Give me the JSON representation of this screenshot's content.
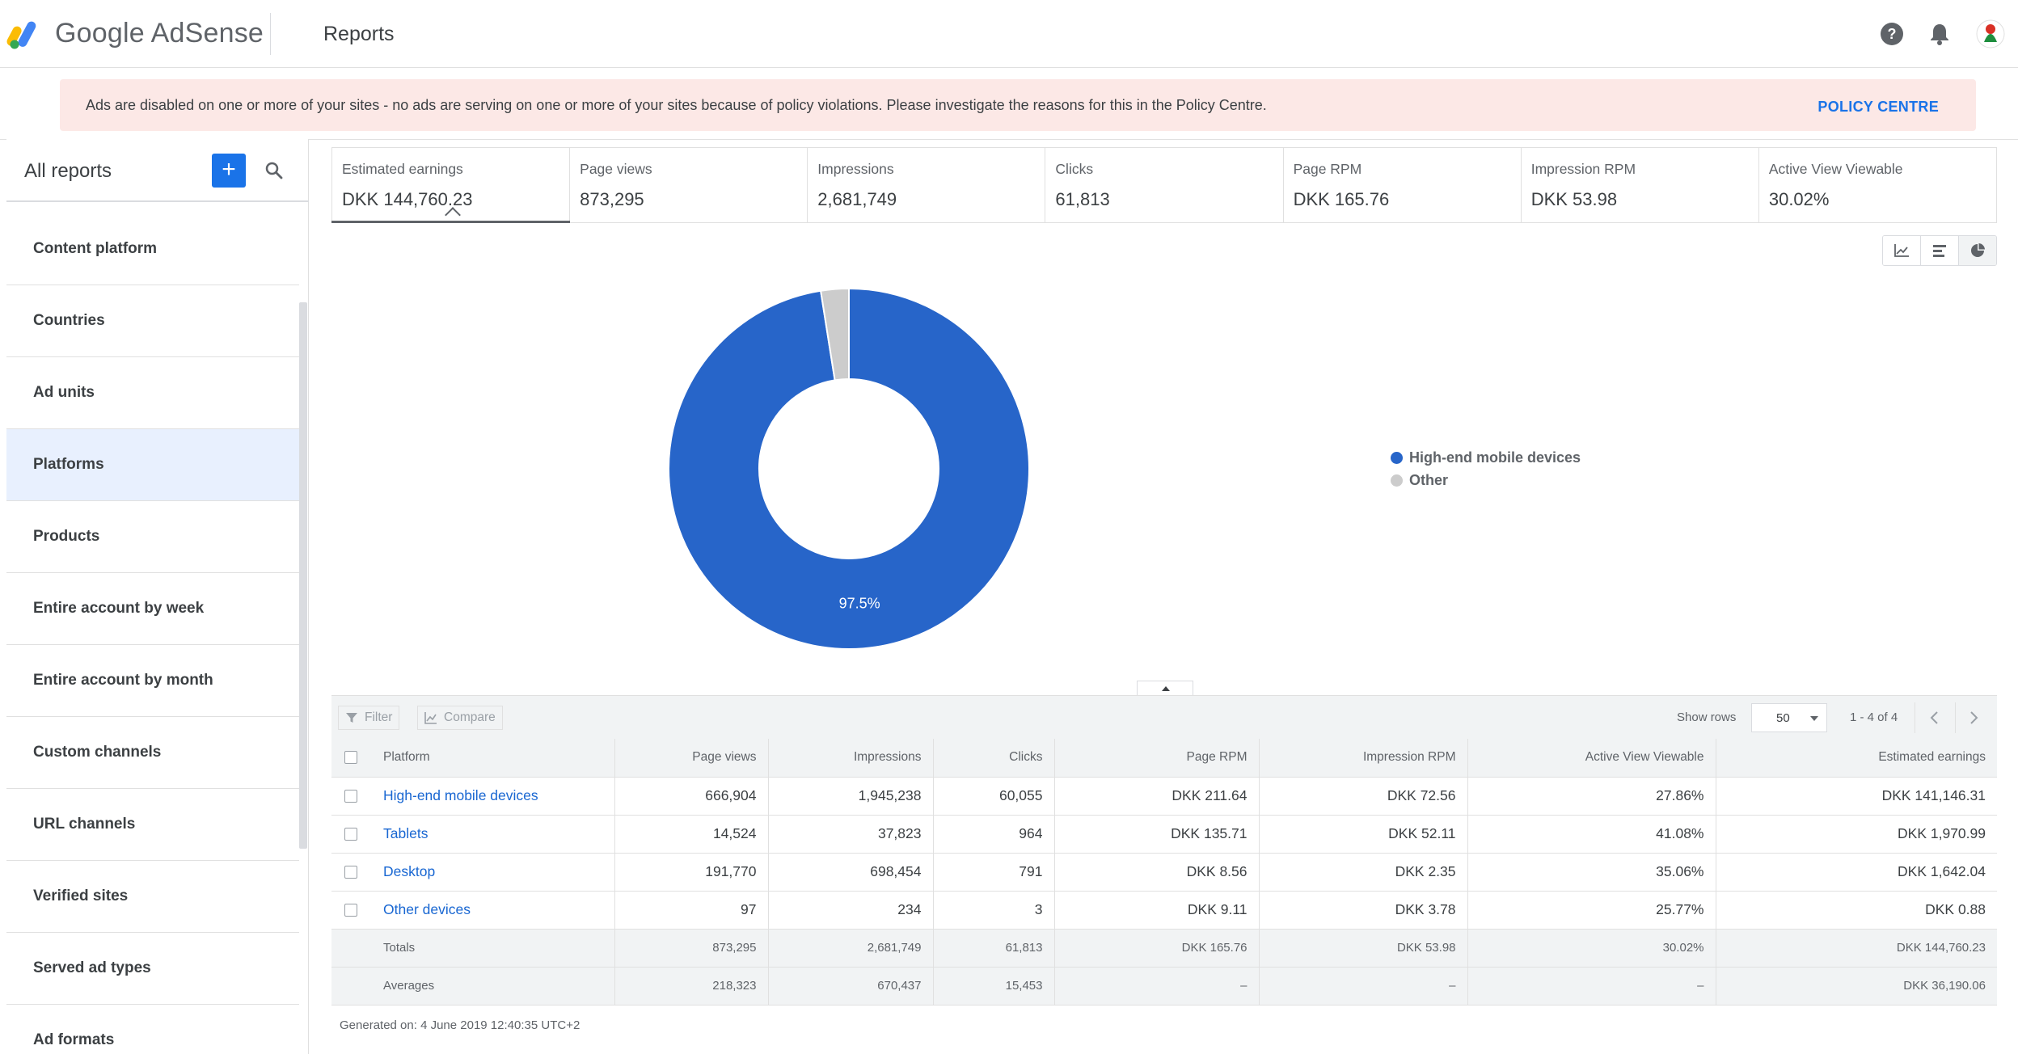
{
  "header": {
    "logo_text": "Google AdSense",
    "title": "Reports",
    "icons": [
      "help-icon",
      "notifications-icon",
      "avatar"
    ]
  },
  "banner": {
    "text": "Ads are disabled on one or more of your sites - no ads are serving on one or more of your sites because of policy violations. Please investigate the reasons for this in the Policy Centre.",
    "link": "POLICY CENTRE"
  },
  "sidebar": {
    "title": "All reports",
    "items": [
      {
        "label": "Content platform"
      },
      {
        "label": "Countries"
      },
      {
        "label": "Ad units"
      },
      {
        "label": "Platforms",
        "active": true
      },
      {
        "label": "Products"
      },
      {
        "label": "Entire account by week"
      },
      {
        "label": "Entire account by month"
      },
      {
        "label": "Custom channels"
      },
      {
        "label": "URL channels"
      },
      {
        "label": "Verified sites"
      },
      {
        "label": "Served ad types"
      },
      {
        "label": "Ad formats"
      }
    ]
  },
  "metrics": [
    {
      "label": "Estimated earnings",
      "value": "DKK 144,760.23",
      "selected": true
    },
    {
      "label": "Page views",
      "value": "873,295"
    },
    {
      "label": "Impressions",
      "value": "2,681,749"
    },
    {
      "label": "Clicks",
      "value": "61,813"
    },
    {
      "label": "Page RPM",
      "value": "DKK 165.76"
    },
    {
      "label": "Impression RPM",
      "value": "DKK 53.98"
    },
    {
      "label": "Active View Viewable",
      "value": "30.02%"
    }
  ],
  "view_toggles": [
    "line-chart-icon",
    "bar-chart-icon",
    "pie-chart-icon"
  ],
  "chart_data": {
    "type": "pie",
    "donut": true,
    "slices": [
      {
        "name": "High-end mobile devices",
        "value": 97.5,
        "color": "#2765c9"
      },
      {
        "name": "Other",
        "value": 2.5,
        "color": "#cccccc"
      }
    ],
    "data_labels": [
      "97.5%"
    ],
    "legend_position": "right"
  },
  "toolbar": {
    "filter": "Filter",
    "compare": "Compare",
    "show_rows": "Show rows",
    "rows_value": "50",
    "range": "1 - 4 of 4"
  },
  "table": {
    "columns": [
      "Platform",
      "Page views",
      "Impressions",
      "Clicks",
      "Page RPM",
      "Impression RPM",
      "Active View Viewable",
      "Estimated earnings"
    ],
    "rows": [
      [
        "High-end mobile devices",
        "666,904",
        "1,945,238",
        "60,055",
        "DKK 211.64",
        "DKK 72.56",
        "27.86%",
        "DKK 141,146.31"
      ],
      [
        "Tablets",
        "14,524",
        "37,823",
        "964",
        "DKK 135.71",
        "DKK 52.11",
        "41.08%",
        "DKK 1,970.99"
      ],
      [
        "Desktop",
        "191,770",
        "698,454",
        "791",
        "DKK 8.56",
        "DKK 2.35",
        "35.06%",
        "DKK 1,642.04"
      ],
      [
        "Other devices",
        "97",
        "234",
        "3",
        "DKK 9.11",
        "DKK 3.78",
        "25.77%",
        "DKK 0.88"
      ]
    ],
    "totals": [
      "Totals",
      "873,295",
      "2,681,749",
      "61,813",
      "DKK 165.76",
      "DKK 53.98",
      "30.02%",
      "DKK 144,760.23"
    ],
    "averages": [
      "Averages",
      "218,323",
      "670,437",
      "15,453",
      "–",
      "–",
      "–",
      "DKK 36,190.06"
    ]
  },
  "generated": "Generated on: 4 June 2019 12:40:35 UTC+2"
}
